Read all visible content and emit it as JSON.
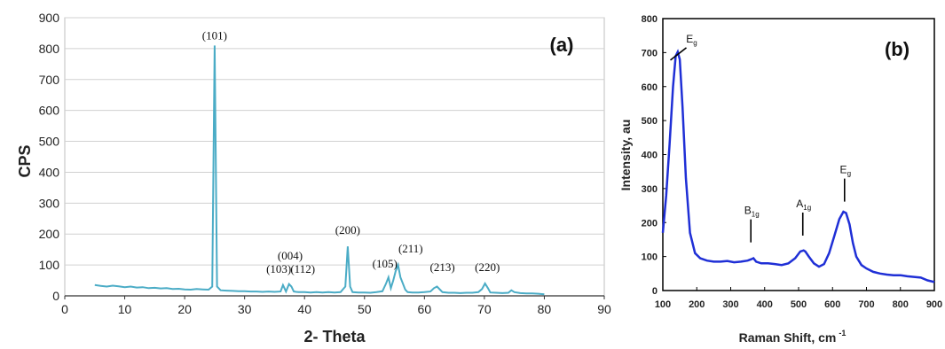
{
  "chart_data": [
    {
      "type": "line",
      "panel_label": "(a)",
      "xlabel": "2- Theta",
      "ylabel": "CPS",
      "xlim": [
        0,
        90
      ],
      "ylim": [
        0,
        900
      ],
      "xticks": [
        "0",
        "10",
        "20",
        "30",
        "40",
        "50",
        "60",
        "70",
        "80",
        "90"
      ],
      "yticks": [
        "0",
        "100",
        "200",
        "300",
        "400",
        "500",
        "600",
        "700",
        "800",
        "900"
      ],
      "grid": "horizontal",
      "color": "#4bacc6",
      "series": [
        {
          "x": [
            5,
            6,
            7,
            8,
            9,
            10,
            11,
            12,
            13,
            14,
            15,
            16,
            17,
            18,
            19,
            20,
            21,
            22,
            23,
            24,
            24.6,
            25.0,
            25.4,
            26,
            27,
            28,
            29,
            30,
            31,
            32,
            33,
            34,
            35,
            36,
            36.4,
            36.9,
            37.4,
            37.8,
            38.2,
            38.6,
            39,
            40,
            41,
            42,
            43,
            44,
            45,
            46,
            46.8,
            47.2,
            47.6,
            48,
            49,
            50,
            51,
            52,
            53,
            53.6,
            54.0,
            54.4,
            54.8,
            55.2,
            55.6,
            56.0,
            56.4,
            56.8,
            57.2,
            58,
            59,
            60,
            61,
            61.6,
            62.1,
            62.6,
            63,
            64,
            65,
            66,
            67,
            68,
            69,
            69.6,
            70.1,
            70.6,
            71,
            72,
            73,
            74,
            74.5,
            75,
            76,
            77,
            78,
            79,
            80
          ],
          "y": [
            35,
            32,
            30,
            33,
            31,
            28,
            30,
            27,
            28,
            25,
            26,
            24,
            25,
            22,
            23,
            21,
            20,
            22,
            21,
            20,
            30,
            810,
            30,
            18,
            17,
            16,
            15,
            15,
            14,
            14,
            13,
            14,
            13,
            14,
            35,
            14,
            38,
            30,
            14,
            13,
            12,
            12,
            11,
            12,
            11,
            12,
            11,
            12,
            30,
            160,
            30,
            12,
            11,
            11,
            10,
            12,
            15,
            40,
            60,
            25,
            50,
            80,
            100,
            60,
            40,
            20,
            12,
            11,
            11,
            12,
            14,
            25,
            30,
            20,
            12,
            10,
            10,
            9,
            10,
            10,
            12,
            22,
            40,
            25,
            11,
            10,
            9,
            10,
            18,
            12,
            9,
            8,
            8,
            7,
            5
          ]
        }
      ],
      "annotations": [
        {
          "text": "(101)",
          "x": 25.0,
          "y": 830
        },
        {
          "text": "(004)",
          "x": 37.6,
          "y": 117
        },
        {
          "text": "(103)",
          "x": 35.7,
          "y": 75
        },
        {
          "text": "(112)",
          "x": 39.7,
          "y": 75
        },
        {
          "text": "(200)",
          "x": 47.2,
          "y": 200
        },
        {
          "text": "(105)",
          "x": 53.4,
          "y": 92
        },
        {
          "text": "(211)",
          "x": 57.7,
          "y": 140
        },
        {
          "text": "(213)",
          "x": 63.0,
          "y": 80
        },
        {
          "text": "(220)",
          "x": 70.5,
          "y": 80
        }
      ]
    },
    {
      "type": "line",
      "panel_label": "(b)",
      "xlabel": "Raman Shift, cm",
      "xlabel_sup": "-1",
      "ylabel": "Intensity, au",
      "xlim": [
        100,
        900
      ],
      "ylim": [
        0,
        800
      ],
      "xticks": [
        "100",
        "200",
        "300",
        "400",
        "500",
        "600",
        "700",
        "800",
        "900"
      ],
      "yticks": [
        "0",
        "100",
        "200",
        "300",
        "400",
        "500",
        "600",
        "700",
        "800"
      ],
      "grid": "none",
      "color": "#1f2fd6",
      "series": [
        {
          "x": [
            100,
            110,
            120,
            130,
            138,
            144,
            150,
            158,
            168,
            180,
            195,
            210,
            230,
            250,
            270,
            290,
            310,
            330,
            350,
            360,
            367,
            375,
            390,
            410,
            430,
            450,
            470,
            490,
            505,
            515,
            520,
            530,
            545,
            560,
            575,
            590,
            605,
            620,
            632,
            640,
            650,
            660,
            670,
            685,
            700,
            720,
            740,
            760,
            780,
            800,
            820,
            840,
            860,
            880,
            900
          ],
          "y": [
            170,
            280,
            430,
            600,
            690,
            702,
            680,
            540,
            330,
            170,
            110,
            95,
            88,
            85,
            85,
            87,
            83,
            85,
            88,
            92,
            95,
            85,
            80,
            80,
            78,
            75,
            80,
            95,
            115,
            118,
            115,
            100,
            80,
            70,
            78,
            110,
            160,
            210,
            232,
            228,
            195,
            140,
            100,
            75,
            65,
            55,
            50,
            47,
            45,
            45,
            42,
            40,
            38,
            30,
            25
          ]
        }
      ],
      "annotations": [
        {
          "text": "E",
          "sub": "g",
          "x": 185,
          "y": 730
        },
        {
          "text": "B",
          "sub": "1g",
          "x": 362,
          "y": 225
        },
        {
          "text": "A",
          "sub": "1g",
          "x": 515,
          "y": 245
        },
        {
          "text": "E",
          "sub": "g",
          "x": 638,
          "y": 345
        }
      ]
    }
  ]
}
